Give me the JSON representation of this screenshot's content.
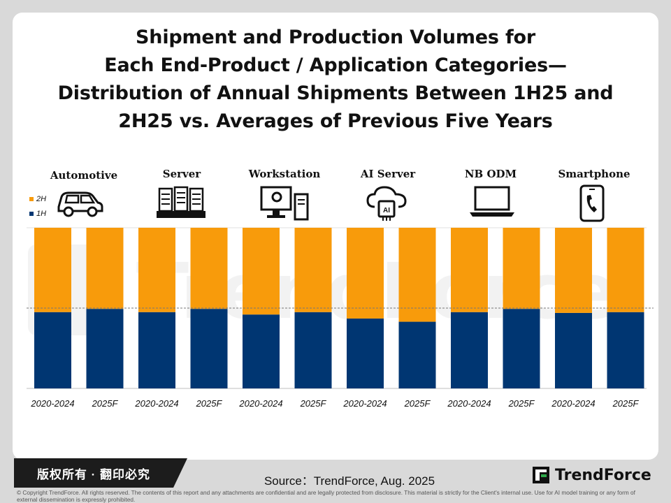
{
  "title_lines": [
    "Shipment and Production Volumes for",
    "Each End-Product / Application Categories—",
    "Distribution of Annual Shipments Between 1H25 and",
    "2H25 vs. Averages of Previous Five Years"
  ],
  "watermark_text": "TrendForce",
  "categories": [
    {
      "label": "Automotive",
      "icon": "car-icon"
    },
    {
      "label": "Server",
      "icon": "server-rack-icon"
    },
    {
      "label": "Workstation",
      "icon": "workstation-icon"
    },
    {
      "label": "AI Server",
      "icon": "ai-cloud-chip-icon"
    },
    {
      "label": "NB ODM",
      "icon": "laptop-icon"
    },
    {
      "label": "Smartphone",
      "icon": "smartphone-icon"
    }
  ],
  "legend": [
    {
      "label": "2H",
      "color": "#F89B0B"
    },
    {
      "label": "1H",
      "color": "#003672"
    }
  ],
  "chart_data": {
    "type": "bar",
    "stacked": true,
    "categories": [
      "2020-2024",
      "2025F",
      "2020-2024",
      "2025F",
      "2020-2024",
      "2025F",
      "2020-2024",
      "2025F",
      "2020-2024",
      "2025F",
      "2020-2024",
      "2025F"
    ],
    "groups": [
      "Automotive",
      "Server",
      "Workstation",
      "AI Server",
      "NB ODM",
      "Smartphone"
    ],
    "series": [
      {
        "name": "1H",
        "color": "#003672",
        "values": [
          47.5,
          49.5,
          47.5,
          49.5,
          46.0,
          47.5,
          43.5,
          41.5,
          47.5,
          49.5,
          47.0,
          47.5
        ]
      },
      {
        "name": "2H",
        "color": "#F89B0B",
        "values": [
          52.5,
          50.5,
          52.5,
          50.5,
          54.0,
          52.5,
          56.5,
          58.5,
          52.5,
          50.5,
          53.0,
          52.5
        ]
      }
    ],
    "ylim": [
      0,
      100
    ],
    "reference_line": 50,
    "xlabel": "",
    "ylabel": ""
  },
  "footer": {
    "rights_label": "版权所有 · 翻印必究",
    "source": "Source：TrendForce, Aug. 2025",
    "logo_text": "TrendForce",
    "copyright": "© Copyright TrendForce. All rights reserved. The contents of this report and any attachments are confidential and are legally protected from disclosure. This material is strictly for the Client's internal use. Use for AI model training or any form of external dissemination is expressly prohibited."
  }
}
